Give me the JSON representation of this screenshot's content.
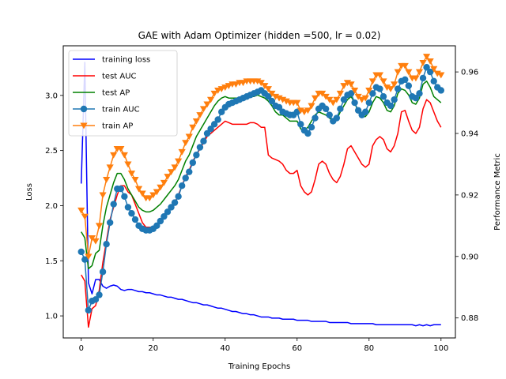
{
  "chart_data": {
    "type": "line",
    "title": "GAE with Adam Optimizer (hidden =500, lr = 0.02)",
    "xlabel": "Training Epochs",
    "ylabel_left": "Loss",
    "ylabel_right": "Performance Metric",
    "xlim": [
      -5,
      104
    ],
    "ylim_left": [
      0.8,
      3.45
    ],
    "ylim_right": [
      0.8735,
      0.9685
    ],
    "xticks": [
      0,
      20,
      40,
      60,
      80,
      100
    ],
    "yticks_left": [
      1.0,
      1.5,
      2.0,
      2.5,
      3.0
    ],
    "yticks_right": [
      0.88,
      0.9,
      0.92,
      0.94,
      0.96
    ],
    "grid": false,
    "legend_position": "top-left",
    "colors": {
      "training_loss": "#0000ff",
      "test_auc": "#ff0000",
      "test_ap": "#008000",
      "train_auc": "#1f77b4",
      "train_ap": "#ff7f0e"
    },
    "series": [
      {
        "name": "training loss",
        "axis": "left",
        "values": [
          2.2,
          3.3,
          1.3,
          1.2,
          1.33,
          1.33,
          1.27,
          1.25,
          1.27,
          1.28,
          1.27,
          1.24,
          1.23,
          1.24,
          1.24,
          1.23,
          1.22,
          1.22,
          1.21,
          1.21,
          1.2,
          1.19,
          1.19,
          1.18,
          1.17,
          1.17,
          1.16,
          1.15,
          1.15,
          1.14,
          1.13,
          1.12,
          1.12,
          1.11,
          1.1,
          1.1,
          1.09,
          1.08,
          1.07,
          1.07,
          1.06,
          1.05,
          1.04,
          1.04,
          1.03,
          1.02,
          1.02,
          1.01,
          1.01,
          1.0,
          0.99,
          0.99,
          0.99,
          0.98,
          0.98,
          0.98,
          0.97,
          0.97,
          0.97,
          0.97,
          0.96,
          0.96,
          0.96,
          0.96,
          0.95,
          0.95,
          0.95,
          0.95,
          0.95,
          0.94,
          0.94,
          0.94,
          0.94,
          0.94,
          0.94,
          0.93,
          0.93,
          0.93,
          0.93,
          0.93,
          0.93,
          0.93,
          0.92,
          0.92,
          0.92,
          0.92,
          0.92,
          0.92,
          0.92,
          0.92,
          0.92,
          0.92,
          0.92,
          0.91,
          0.92,
          0.91,
          0.92,
          0.91,
          0.92,
          0.92,
          0.92
        ]
      },
      {
        "name": "test AUC",
        "axis": "right",
        "values": [
          0.894,
          0.892,
          0.877,
          0.883,
          0.884,
          0.889,
          0.898,
          0.905,
          0.912,
          0.916,
          0.92,
          0.923,
          0.923,
          0.921,
          0.92,
          0.917,
          0.914,
          0.911,
          0.9095,
          0.9095,
          0.9095,
          0.9105,
          0.9115,
          0.9135,
          0.915,
          0.916,
          0.9175,
          0.92,
          0.923,
          0.926,
          0.928,
          0.931,
          0.933,
          0.935,
          0.937,
          0.939,
          0.94,
          0.941,
          0.942,
          0.943,
          0.944,
          0.9435,
          0.943,
          0.943,
          0.943,
          0.943,
          0.943,
          0.9435,
          0.9435,
          0.943,
          0.942,
          0.942,
          0.933,
          0.932,
          0.9315,
          0.931,
          0.93,
          0.928,
          0.927,
          0.927,
          0.928,
          0.923,
          0.921,
          0.92,
          0.921,
          0.925,
          0.93,
          0.931,
          0.93,
          0.927,
          0.925,
          0.924,
          0.926,
          0.93,
          0.935,
          0.936,
          0.934,
          0.932,
          0.93,
          0.929,
          0.93,
          0.936,
          0.938,
          0.939,
          0.938,
          0.935,
          0.934,
          0.936,
          0.94,
          0.947,
          0.9475,
          0.944,
          0.941,
          0.94,
          0.942,
          0.948,
          0.951,
          0.95,
          0.947,
          0.944,
          0.942
        ]
      },
      {
        "name": "test AP",
        "axis": "right",
        "values": [
          0.908,
          0.906,
          0.896,
          0.897,
          0.901,
          0.902,
          0.91,
          0.916,
          0.92,
          0.924,
          0.927,
          0.927,
          0.925,
          0.922,
          0.92,
          0.918,
          0.916,
          0.915,
          0.9145,
          0.9145,
          0.915,
          0.916,
          0.917,
          0.9185,
          0.92,
          0.9215,
          0.923,
          0.925,
          0.928,
          0.931,
          0.933,
          0.936,
          0.939,
          0.941,
          0.943,
          0.945,
          0.947,
          0.949,
          0.9505,
          0.9515,
          0.952,
          0.9515,
          0.9515,
          0.9515,
          0.9515,
          0.9515,
          0.952,
          0.952,
          0.952,
          0.9525,
          0.952,
          0.9515,
          0.9505,
          0.949,
          0.947,
          0.946,
          0.946,
          0.945,
          0.944,
          0.944,
          0.944,
          0.9415,
          0.941,
          0.942,
          0.944,
          0.946,
          0.947,
          0.9465,
          0.946,
          0.945,
          0.944,
          0.9445,
          0.947,
          0.949,
          0.951,
          0.952,
          0.95,
          0.947,
          0.9455,
          0.9455,
          0.947,
          0.95,
          0.952,
          0.9515,
          0.95,
          0.9475,
          0.947,
          0.949,
          0.953,
          0.9545,
          0.954,
          0.9525,
          0.95,
          0.9495,
          0.9515,
          0.956,
          0.957,
          0.955,
          0.952,
          0.951,
          0.95
        ]
      },
      {
        "name": "train AUC",
        "axis": "right",
        "values": [
          0.9015,
          0.899,
          0.8825,
          0.8855,
          0.886,
          0.8875,
          0.895,
          0.904,
          0.911,
          0.917,
          0.922,
          0.922,
          0.9195,
          0.916,
          0.914,
          0.912,
          0.91,
          0.909,
          0.9085,
          0.9085,
          0.909,
          0.91,
          0.9115,
          0.913,
          0.9145,
          0.916,
          0.9175,
          0.9195,
          0.923,
          0.9255,
          0.9275,
          0.9305,
          0.933,
          0.9355,
          0.9375,
          0.94,
          0.9415,
          0.943,
          0.9445,
          0.947,
          0.9485,
          0.9495,
          0.95,
          0.9505,
          0.951,
          0.9515,
          0.952,
          0.9525,
          0.953,
          0.9535,
          0.954,
          0.953,
          0.952,
          0.9505,
          0.949,
          0.9485,
          0.947,
          0.9465,
          0.946,
          0.946,
          0.947,
          0.943,
          0.941,
          0.94,
          0.942,
          0.945,
          0.948,
          0.949,
          0.948,
          0.946,
          0.944,
          0.945,
          0.948,
          0.951,
          0.9525,
          0.953,
          0.95,
          0.9475,
          0.946,
          0.947,
          0.95,
          0.953,
          0.955,
          0.9545,
          0.952,
          0.95,
          0.949,
          0.951,
          0.9545,
          0.957,
          0.9575,
          0.9555,
          0.952,
          0.9515,
          0.953,
          0.958,
          0.9615,
          0.96,
          0.957,
          0.955,
          0.954
        ]
      },
      {
        "name": "train AP",
        "axis": "right",
        "values": [
          0.915,
          0.913,
          0.9,
          0.906,
          0.905,
          0.91,
          0.92,
          0.925,
          0.929,
          0.933,
          0.935,
          0.935,
          0.933,
          0.93,
          0.927,
          0.925,
          0.922,
          0.9205,
          0.919,
          0.919,
          0.92,
          0.921,
          0.9225,
          0.924,
          0.926,
          0.9275,
          0.929,
          0.931,
          0.934,
          0.937,
          0.939,
          0.942,
          0.944,
          0.946,
          0.948,
          0.9495,
          0.951,
          0.953,
          0.954,
          0.9545,
          0.955,
          0.9555,
          0.956,
          0.956,
          0.9565,
          0.9565,
          0.957,
          0.957,
          0.957,
          0.957,
          0.9565,
          0.9555,
          0.9545,
          0.953,
          0.952,
          0.9515,
          0.951,
          0.9505,
          0.95,
          0.95,
          0.95,
          0.9475,
          0.947,
          0.9475,
          0.949,
          0.9515,
          0.953,
          0.953,
          0.952,
          0.951,
          0.95,
          0.951,
          0.953,
          0.9555,
          0.9565,
          0.956,
          0.954,
          0.952,
          0.951,
          0.9515,
          0.954,
          0.957,
          0.959,
          0.959,
          0.957,
          0.955,
          0.9545,
          0.956,
          0.96,
          0.962,
          0.962,
          0.96,
          0.958,
          0.958,
          0.96,
          0.963,
          0.965,
          0.9635,
          0.961,
          0.9595,
          0.959
        ]
      }
    ]
  }
}
